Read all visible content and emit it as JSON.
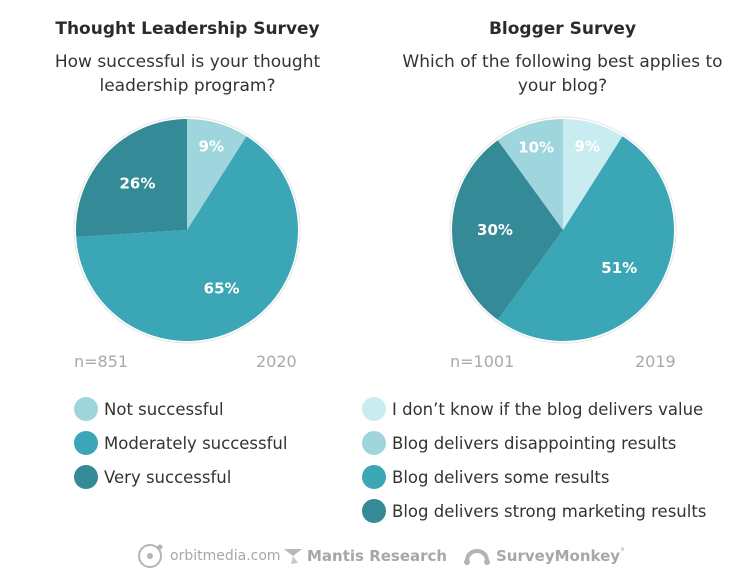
{
  "colors": {
    "not_successful": "#9fd5dd",
    "moderately_successful": "#3ba6b5",
    "very_successful": "#348a97",
    "dont_know": "#c9ecf0",
    "disappointing": "#9fd5dd",
    "some_results": "#3ba6b5",
    "strong_results": "#348a97",
    "label_text": "#ffffff",
    "muted_text": "#a9a9a9"
  },
  "chart_data": [
    {
      "type": "pie",
      "title": "Thought Leadership Survey",
      "subtitle": "How successful is your thought leadership program?",
      "n_label": "n=851",
      "year": "2020",
      "start_angle_deg": 0,
      "slices": [
        {
          "label": "Not successful",
          "value": 9,
          "display": "9%",
          "color": "#9fd5dd"
        },
        {
          "label": "Moderately successful",
          "value": 65,
          "display": "65%",
          "color": "#3ba6b5"
        },
        {
          "label": "Very successful",
          "value": 26,
          "display": "26%",
          "color": "#348a97"
        }
      ],
      "legend_order": [
        0,
        1,
        2
      ]
    },
    {
      "type": "pie",
      "title": "Blogger Survey",
      "subtitle": "Which of the following best applies to your blog?",
      "n_label": "n=1001",
      "year": "2019",
      "start_angle_deg": 0,
      "slices": [
        {
          "label": "I don’t know if the blog delivers value",
          "value": 9,
          "display": "9%",
          "color": "#c9ecf0"
        },
        {
          "label": "Blog delivers some results",
          "value": 51,
          "display": "51%",
          "color": "#3ba6b5"
        },
        {
          "label": "Blog delivers strong marketing results",
          "value": 30,
          "display": "30%",
          "color": "#348a97"
        },
        {
          "label": "Blog delivers disappointing results",
          "value": 10,
          "display": "10%",
          "color": "#9fd5dd"
        }
      ],
      "legend_order": [
        0,
        3,
        1,
        2
      ]
    }
  ],
  "footer": {
    "orbit": "orbitmedia.com",
    "mantis": "Mantis Research",
    "monkey": "SurveyMonkey",
    "monkey_mark": "°"
  }
}
